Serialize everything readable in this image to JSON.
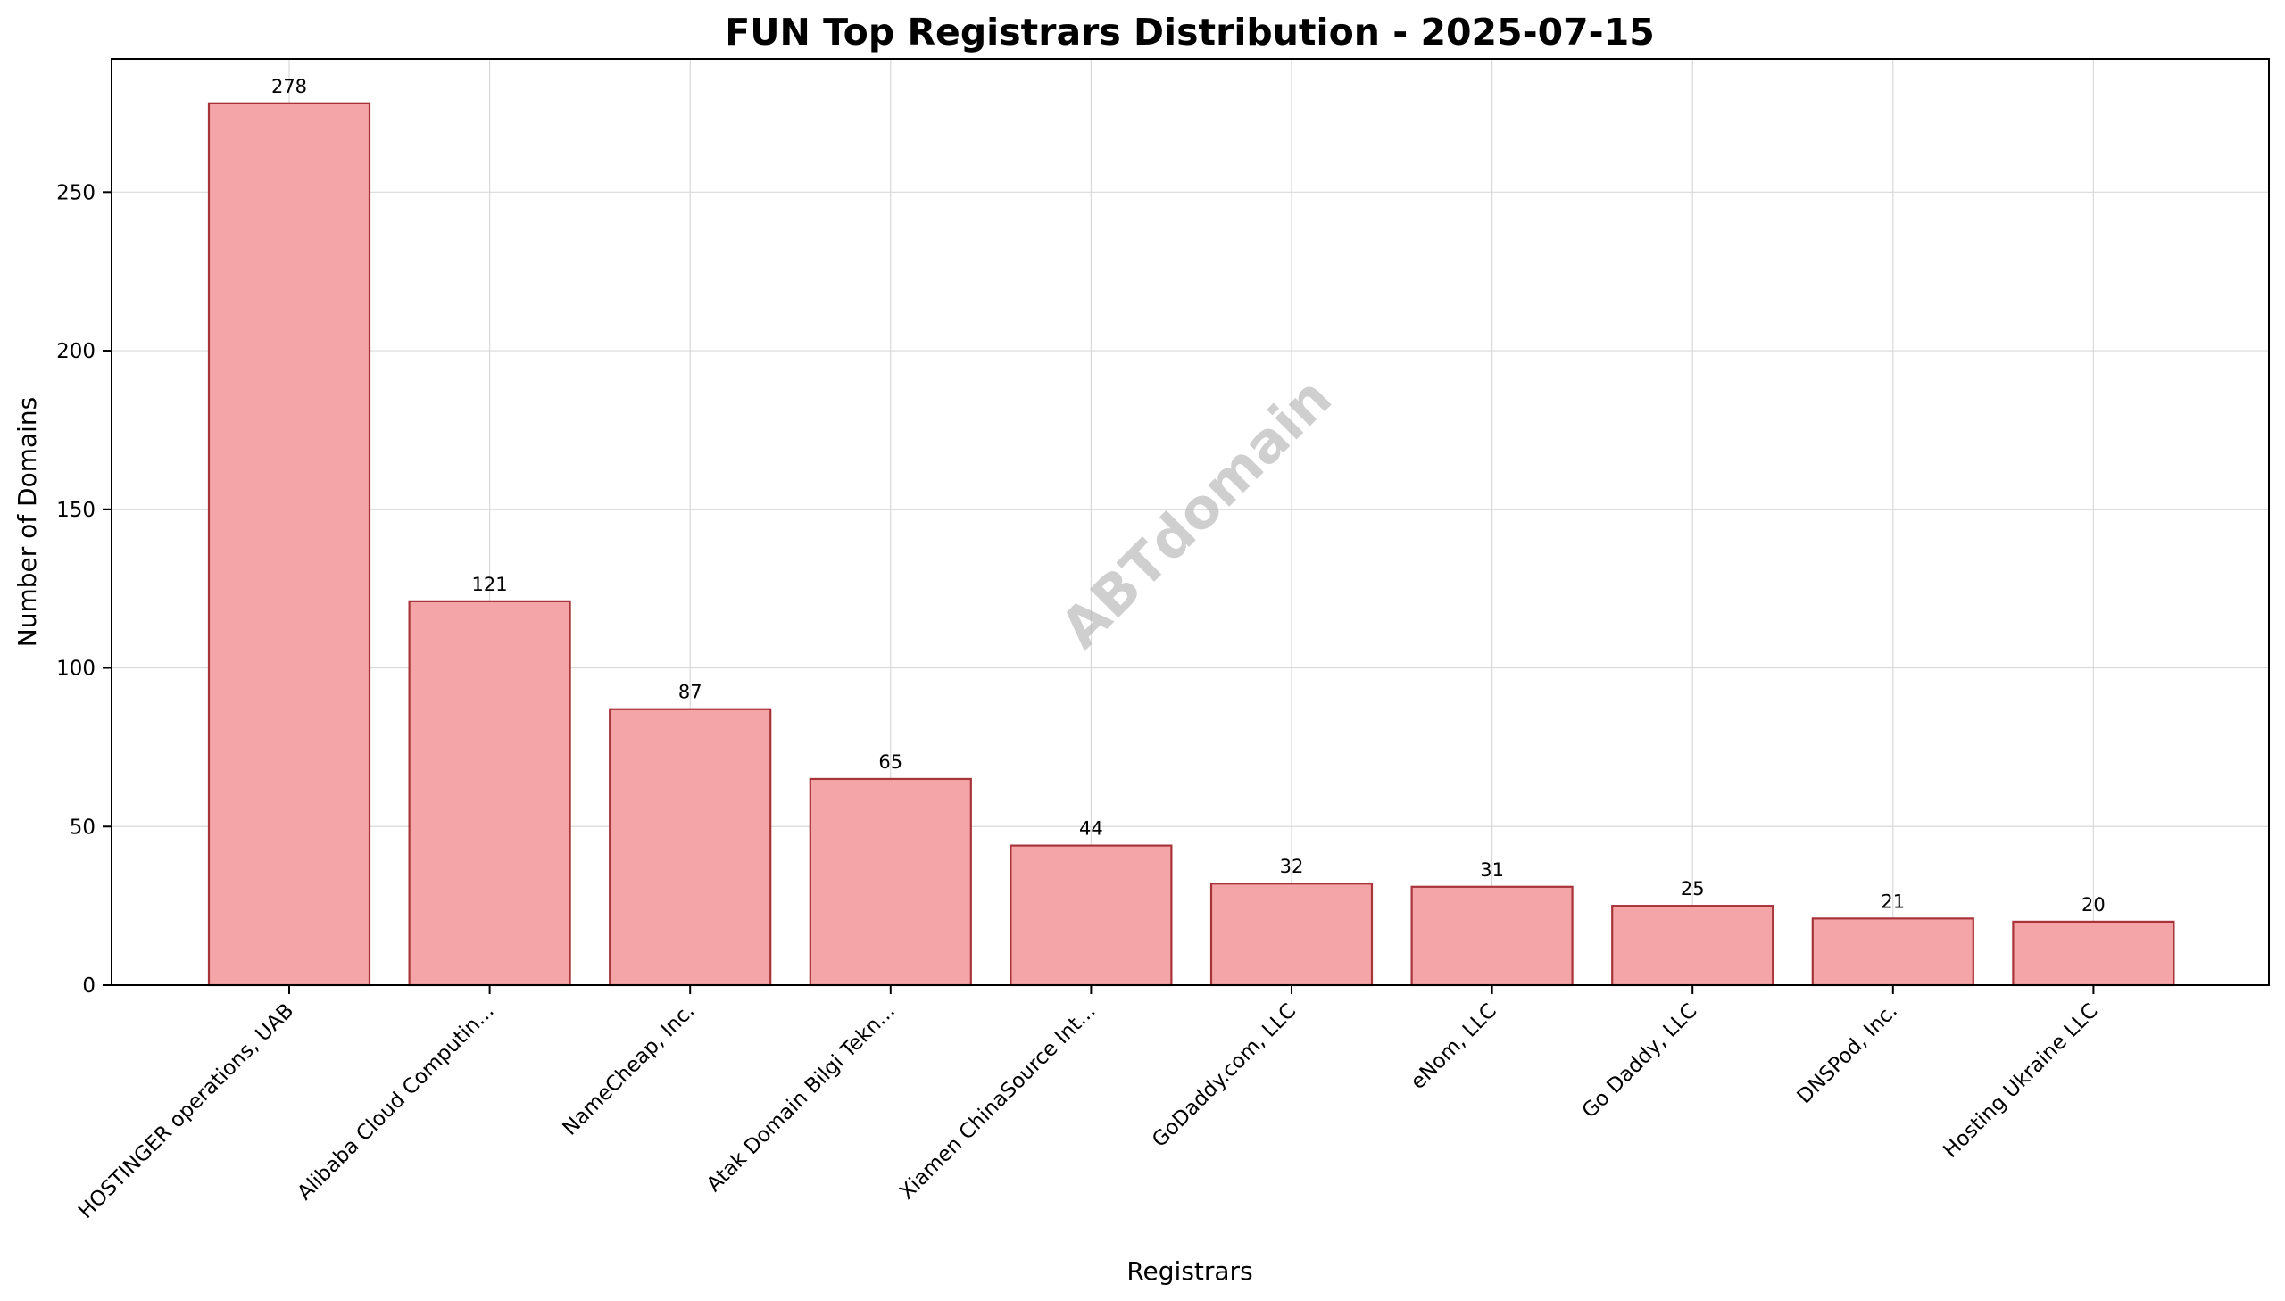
{
  "chart_data": {
    "type": "bar",
    "title": "FUN Top Registrars Distribution - 2025-07-15",
    "xlabel": "Registrars",
    "ylabel": "Number of Domains",
    "categories": [
      "HOSTINGER operations, UAB",
      "Alibaba Cloud Computin...",
      "NameCheap, Inc.",
      "Atak Domain Bilgi Tekn...",
      "Xiamen ChinaSource Int...",
      "GoDaddy.com, LLC",
      "eNom, LLC",
      "Go Daddy, LLC",
      "DNSPod, Inc.",
      "Hosting Ukraine LLC"
    ],
    "values": [
      278,
      121,
      87,
      65,
      44,
      32,
      31,
      25,
      21,
      20
    ],
    "ylim": [
      0,
      292
    ],
    "yticks": [
      0,
      50,
      100,
      150,
      200,
      250
    ],
    "grid": true,
    "bar_color": "#f4a5a7",
    "bar_edge_color": "#a8343a",
    "watermark": "ABTdomain"
  }
}
